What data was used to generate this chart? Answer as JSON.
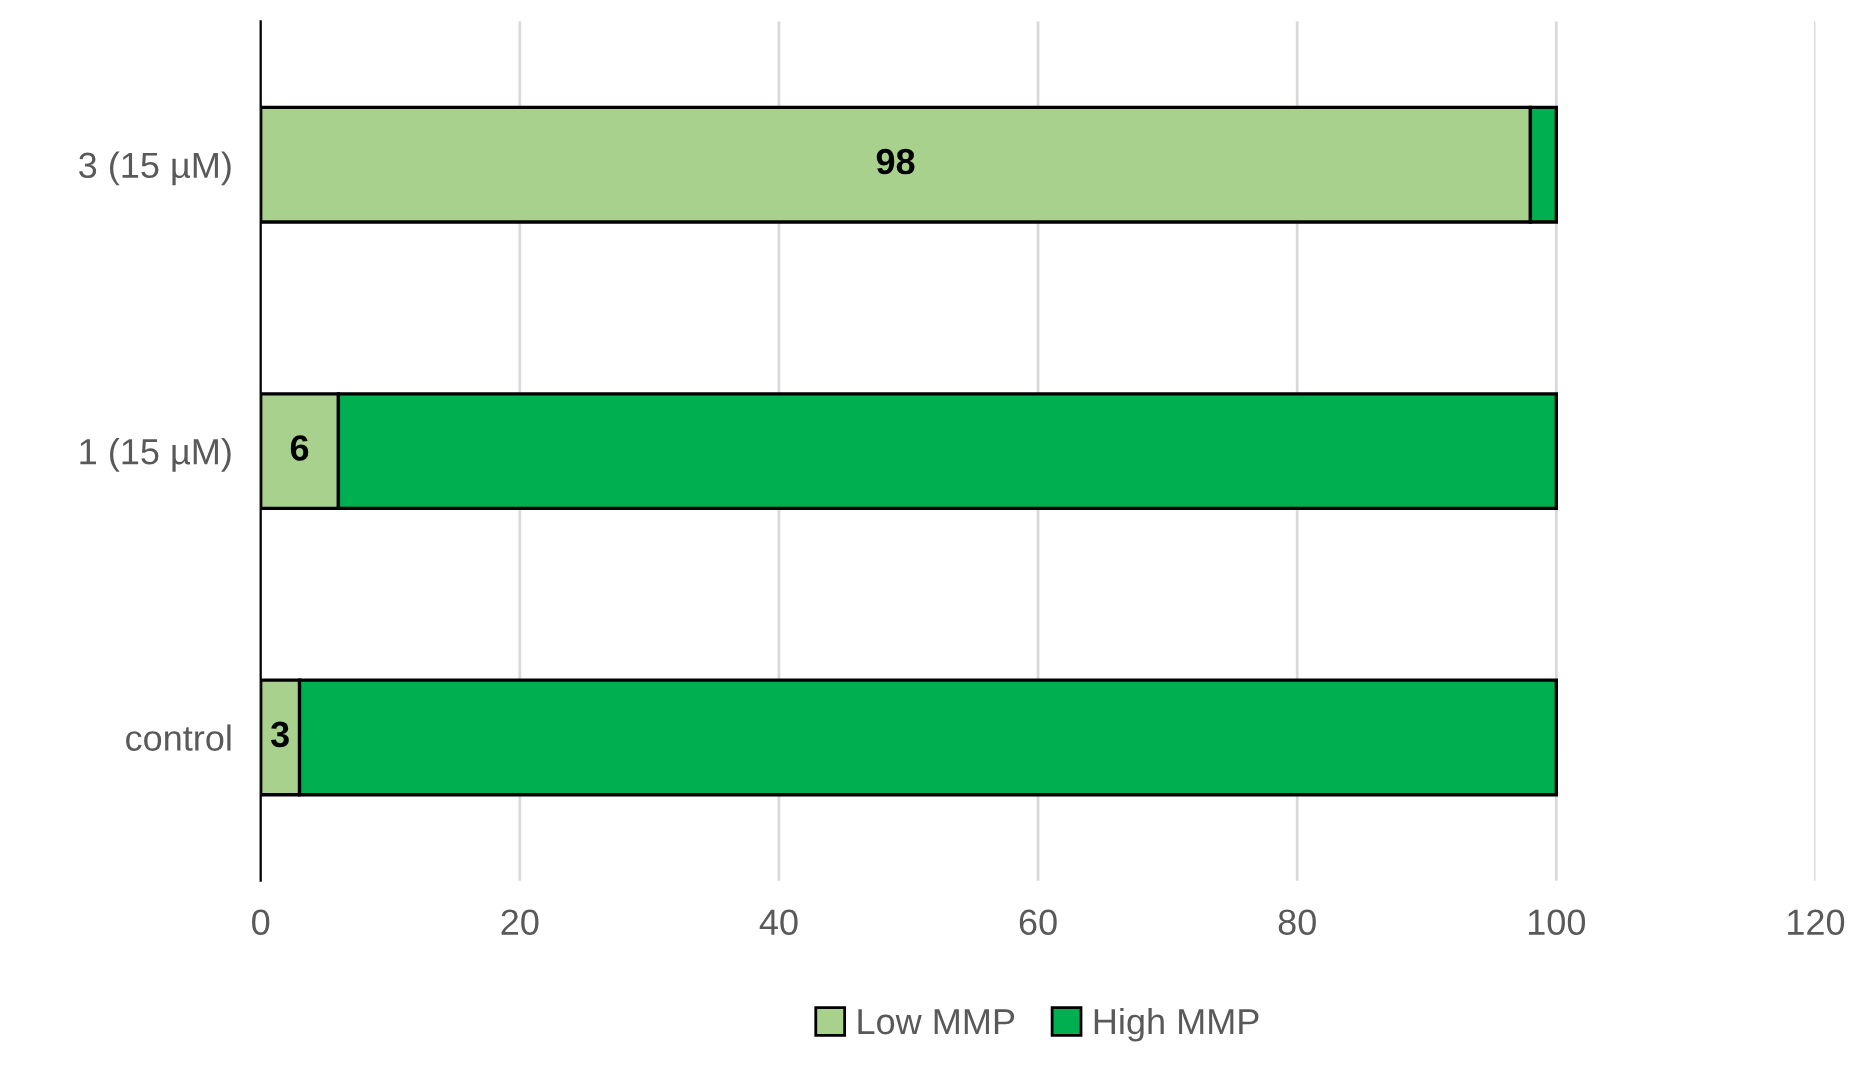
{
  "chart_data": {
    "type": "bar",
    "orientation": "horizontal",
    "stacked": true,
    "categories": [
      "3 (15 µM)",
      "1 (15 µM)",
      "control"
    ],
    "series": [
      {
        "name": "Low MMP",
        "color": "#a9d18e",
        "values": [
          98,
          6,
          3
        ],
        "value_labels": [
          "98",
          "6",
          "3"
        ]
      },
      {
        "name": "High MMP",
        "color": "#00b050",
        "values": [
          2,
          94,
          97
        ]
      }
    ],
    "xlim": [
      0,
      120
    ],
    "xticks": [
      0,
      20,
      40,
      60,
      80,
      100,
      120
    ],
    "grid": "x",
    "legend": "bottom"
  }
}
